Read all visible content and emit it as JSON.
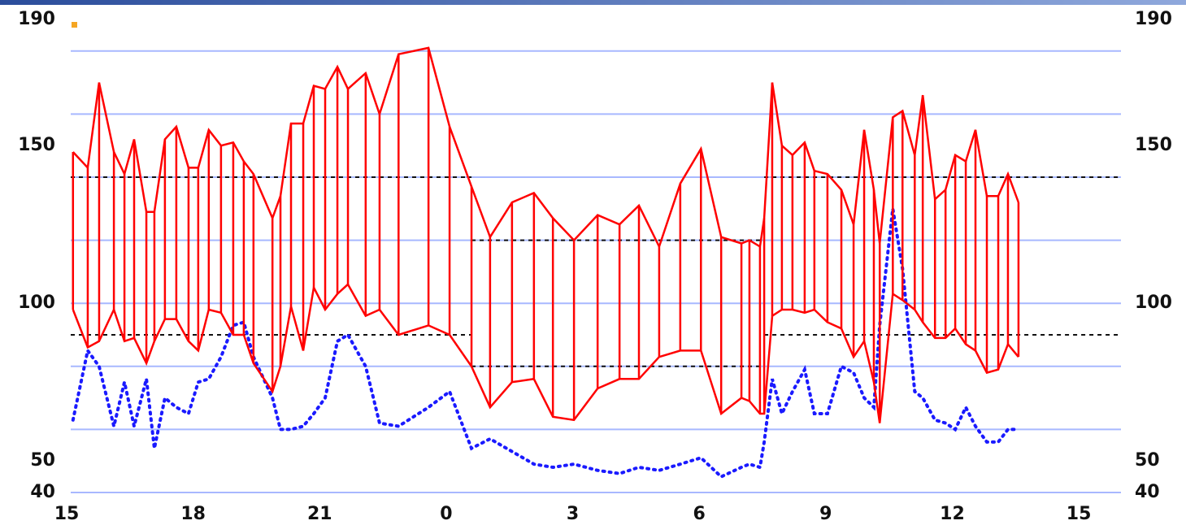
{
  "chart_data": {
    "type": "range-line",
    "x": [
      15.15,
      15.5,
      15.77,
      16.12,
      16.37,
      16.6,
      16.89,
      17.08,
      17.33,
      17.6,
      17.89,
      18.12,
      18.37,
      18.66,
      18.95,
      19.2,
      19.43,
      19.88,
      20.07,
      20.32,
      20.61,
      20.86,
      21.13,
      21.42,
      21.67,
      22.09,
      22.42,
      22.87,
      23.58,
      24.08,
      24.6,
      25.04,
      25.56,
      26.08,
      26.53,
      27.03,
      27.59,
      28.11,
      28.57,
      29.05,
      29.55,
      30.04,
      30.52,
      31.0,
      31.19,
      31.44,
      31.54,
      31.73,
      31.96,
      32.21,
      32.5,
      32.73,
      33.04,
      33.37,
      33.66,
      33.91,
      34.14,
      34.28,
      34.59,
      34.82,
      35.11,
      35.3,
      35.59,
      35.84,
      36.07,
      36.32,
      36.55,
      36.82,
      37.09,
      37.32,
      37.57
    ],
    "series": [
      {
        "color": "#ff0000",
        "values": [
          148,
          143,
          170,
          148,
          141,
          152,
          129,
          129,
          152,
          156,
          143,
          143,
          155,
          150,
          151,
          145,
          141,
          127,
          134,
          157,
          157,
          169,
          168,
          175,
          168,
          173,
          160,
          179,
          181,
          156,
          137,
          121,
          132,
          135,
          127,
          120,
          128,
          125,
          131,
          118,
          138,
          149,
          121,
          119,
          120,
          118,
          127,
          170,
          150,
          147,
          151,
          142,
          141,
          136,
          125,
          155,
          136,
          119,
          159,
          161,
          147,
          166,
          133,
          136,
          147,
          145,
          155,
          134,
          134,
          141,
          132
        ]
      },
      {
        "color": "#ff0000",
        "values": [
          98,
          86,
          88,
          98,
          88,
          89,
          81,
          88,
          95,
          95,
          88,
          85,
          98,
          97,
          90,
          90,
          81,
          72,
          80,
          99,
          85,
          105,
          98,
          103,
          106,
          96,
          98,
          90,
          93,
          90,
          80,
          67,
          75,
          76,
          64,
          63,
          73,
          76,
          76,
          83,
          85,
          85,
          65,
          70,
          69,
          65,
          65,
          96,
          98,
          98,
          97,
          98,
          94,
          92,
          83,
          88,
          75,
          62,
          103,
          101,
          98,
          94,
          89,
          89,
          92,
          87,
          85,
          78,
          79,
          87,
          83
        ]
      },
      {
        "color": "#1a1aff",
        "values": [
          63,
          85,
          80,
          61,
          75,
          61,
          76,
          54,
          70,
          67,
          65,
          75,
          76,
          83,
          93,
          94,
          83,
          70,
          60,
          60,
          61,
          65,
          70,
          88,
          90,
          80,
          62,
          61,
          67,
          72,
          54,
          57,
          53,
          49,
          48,
          49,
          47,
          46,
          48,
          47,
          49,
          51,
          45,
          48,
          49,
          48,
          56,
          76,
          65,
          72,
          79,
          65,
          65,
          80,
          78,
          70,
          67,
          93,
          130,
          111,
          72,
          70,
          63,
          62,
          60,
          67,
          61,
          56,
          56,
          60,
          60
        ]
      }
    ],
    "xlim": [
      15,
      40
    ],
    "xticks": [
      {
        "value": 15,
        "label": "15"
      },
      {
        "value": 18,
        "label": "18"
      },
      {
        "value": 21,
        "label": "21"
      },
      {
        "value": 24,
        "label": "0"
      },
      {
        "value": 27,
        "label": "3"
      },
      {
        "value": 30,
        "label": "6"
      },
      {
        "value": 33,
        "label": "9"
      },
      {
        "value": 36,
        "label": "12"
      },
      {
        "value": 39,
        "label": "15"
      }
    ],
    "ylim": [
      40,
      190
    ],
    "yticks": [
      40,
      50,
      100,
      150,
      190
    ],
    "grid_lines": [
      40,
      60,
      80,
      100,
      120,
      140,
      160,
      180
    ],
    "grid_color": "#a8b8ff",
    "reference_lines": [
      {
        "value": 140,
        "xrange": [
          15,
          24.6
        ]
      },
      {
        "value": 140,
        "xrange": [
          31.54,
          40
        ]
      },
      {
        "value": 90,
        "xrange": [
          15,
          24.6
        ]
      },
      {
        "value": 90,
        "xrange": [
          31.54,
          40
        ]
      },
      {
        "value": 120,
        "xrange": [
          24.6,
          31.54
        ]
      },
      {
        "value": 80,
        "xrange": [
          24.6,
          31.54
        ]
      }
    ]
  }
}
